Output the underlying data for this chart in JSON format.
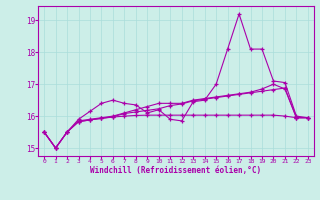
{
  "xlabel": "Windchill (Refroidissement éolien,°C)",
  "bg_color": "#cceee8",
  "grid_color": "#aaddda",
  "line_color": "#aa00aa",
  "x_ticks": [
    0,
    1,
    2,
    3,
    4,
    5,
    6,
    7,
    8,
    9,
    10,
    11,
    12,
    13,
    14,
    15,
    16,
    17,
    18,
    19,
    20,
    21,
    22,
    23
  ],
  "ylim": [
    14.75,
    19.45
  ],
  "yticks": [
    15,
    16,
    17,
    18,
    19
  ],
  "figsize": [
    3.2,
    2.0
  ],
  "dpi": 100,
  "lines": [
    [
      15.5,
      15.0,
      15.5,
      15.9,
      16.15,
      16.4,
      16.5,
      16.4,
      16.35,
      16.1,
      16.2,
      15.9,
      15.85,
      16.45,
      16.5,
      17.0,
      18.1,
      19.2,
      18.1,
      18.1,
      17.1,
      17.05,
      16.0,
      15.95
    ],
    [
      15.5,
      15.0,
      15.5,
      15.85,
      15.9,
      15.95,
      16.0,
      16.1,
      16.2,
      16.3,
      16.4,
      16.4,
      16.4,
      16.5,
      16.55,
      16.6,
      16.65,
      16.7,
      16.75,
      16.85,
      17.0,
      16.85,
      15.95,
      15.95
    ],
    [
      15.5,
      15.0,
      15.5,
      15.82,
      15.88,
      15.93,
      15.97,
      16.0,
      16.02,
      16.03,
      16.03,
      16.03,
      16.03,
      16.03,
      16.03,
      16.03,
      16.03,
      16.03,
      16.03,
      16.03,
      16.03,
      16.0,
      15.95,
      15.95
    ],
    [
      15.5,
      15.0,
      15.5,
      15.83,
      15.88,
      15.93,
      15.98,
      16.08,
      16.13,
      16.18,
      16.23,
      16.33,
      16.38,
      16.48,
      16.53,
      16.58,
      16.63,
      16.68,
      16.73,
      16.78,
      16.83,
      16.88,
      15.95,
      15.95
    ]
  ]
}
